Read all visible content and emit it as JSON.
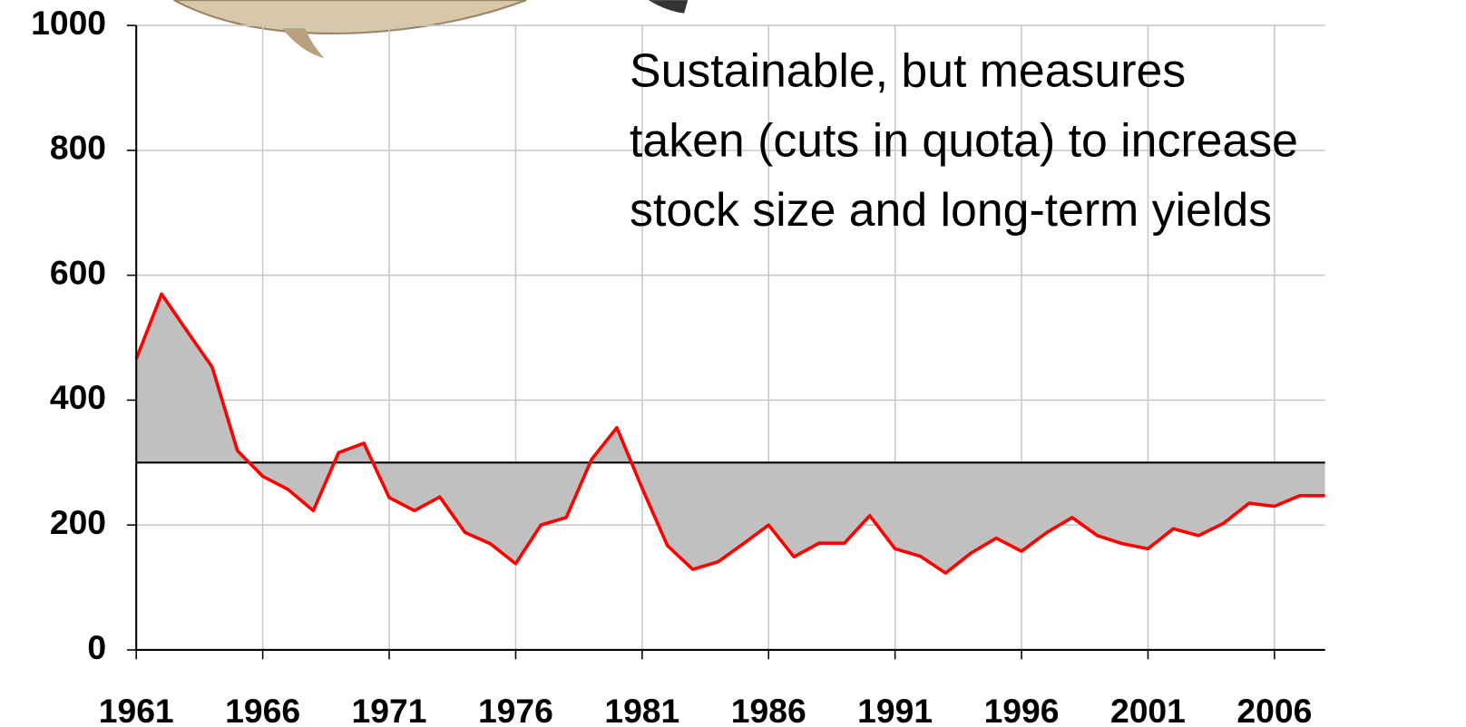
{
  "chart_data": {
    "type": "line",
    "annotation": [
      "Sustainable, but measures",
      "taken (cuts in quota) to increase",
      "stock size and long-term yields"
    ],
    "x": [
      1961,
      1962,
      1963,
      1964,
      1965,
      1966,
      1967,
      1968,
      1969,
      1970,
      1971,
      1972,
      1973,
      1974,
      1975,
      1976,
      1977,
      1978,
      1979,
      1980,
      1981,
      1982,
      1983,
      1984,
      1985,
      1986,
      1987,
      1988,
      1989,
      1990,
      1991,
      1992,
      1993,
      1994,
      1995,
      1996,
      1997,
      1998,
      1999,
      2000,
      2001,
      2002,
      2003,
      2004,
      2005,
      2006,
      2007,
      2008
    ],
    "series": [
      {
        "color": "#ff0000",
        "values": [
          466,
          570,
          511,
          453,
          319,
          278,
          257,
          223,
          316,
          331,
          244,
          223,
          245,
          188,
          170,
          138,
          200,
          212,
          305,
          356,
          259,
          167,
          129,
          141,
          170,
          200,
          149,
          171,
          171,
          215,
          162,
          150,
          123,
          155,
          179,
          158,
          188,
          212,
          183,
          170,
          162,
          194,
          183,
          203,
          235,
          230,
          247,
          247
        ]
      }
    ],
    "reference_line": 300,
    "area_color": "#c0c0c0",
    "xlim": [
      1961,
      2008
    ],
    "xticks": [
      1961,
      1966,
      1971,
      1976,
      1981,
      1986,
      1991,
      1996,
      2001,
      2006
    ],
    "ylim": [
      0,
      1000
    ],
    "yticks": [
      0,
      200,
      400,
      600,
      800,
      1000
    ],
    "grid": true
  }
}
